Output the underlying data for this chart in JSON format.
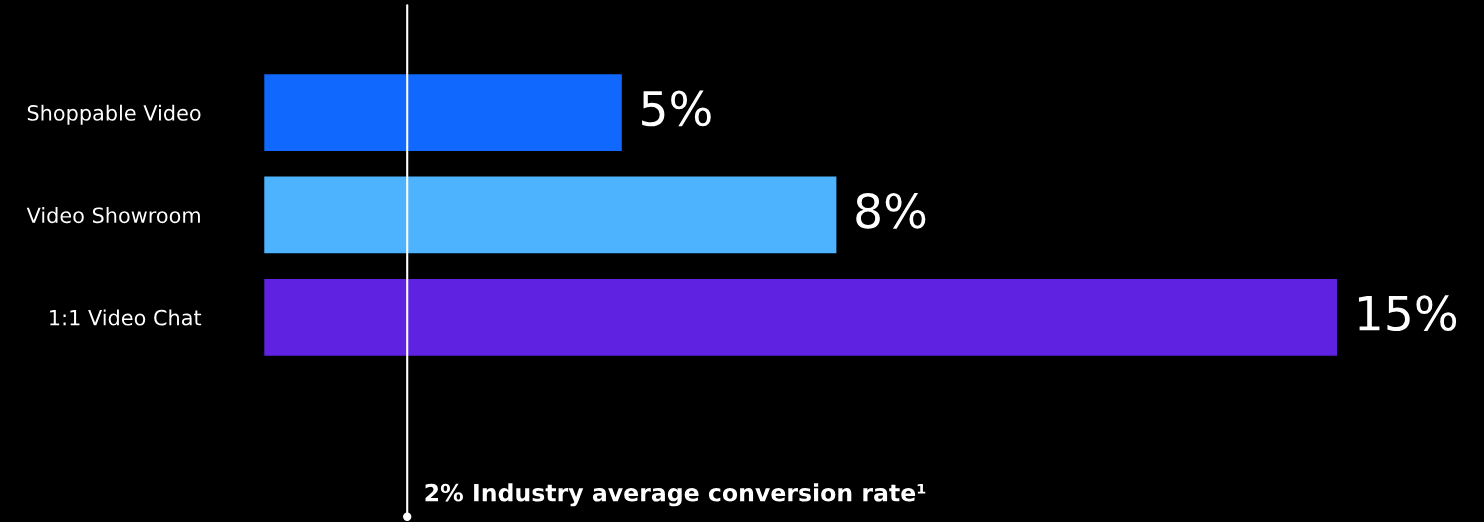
{
  "chart_data": {
    "type": "bar",
    "orientation": "horizontal",
    "categories": [
      "Shoppable Video",
      "Video Showroom",
      "1:1 Video Chat"
    ],
    "values": [
      5,
      8,
      15
    ],
    "colors": [
      "#1068ff",
      "#4db3ff",
      "#5f22e0"
    ],
    "value_labels": [
      "5%",
      "8%",
      "15%"
    ],
    "ref_lines": [
      {
        "axis": "x",
        "value": 2,
        "label": "2% Industry average conversion rate¹",
        "color": "#ffffff",
        "line_style": "solid"
      }
    ],
    "tick_labels": "y",
    "grid": false,
    "legend": false
  }
}
